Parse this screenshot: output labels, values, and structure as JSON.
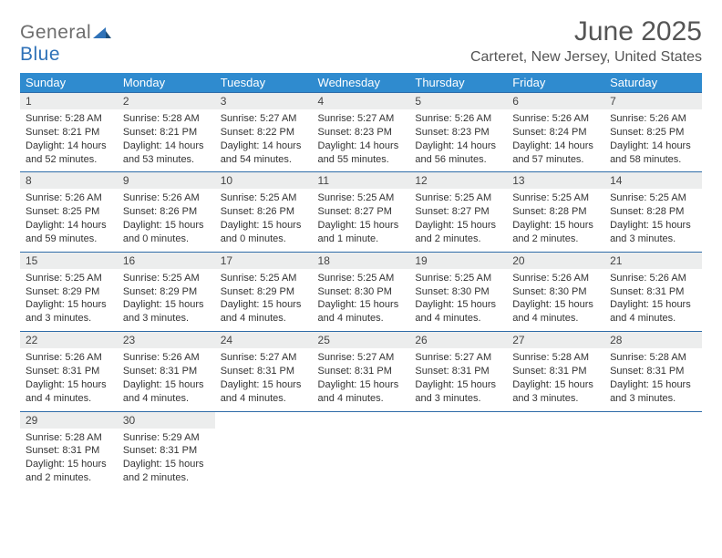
{
  "logo": {
    "textGray": "General",
    "textBlue": "Blue"
  },
  "header": {
    "title": "June 2025",
    "location": "Carteret, New Jersey, United States"
  },
  "colors": {
    "headerBg": "#2f8bcf",
    "dayBarBg": "#eceded",
    "dayBarBorder": "#2f6ca8",
    "logoBlue": "#2f72b8",
    "logoGray": "#6d6d6d",
    "text": "#333333"
  },
  "weekdays": [
    "Sunday",
    "Monday",
    "Tuesday",
    "Wednesday",
    "Thursday",
    "Friday",
    "Saturday"
  ],
  "weeks": [
    [
      {
        "num": "1",
        "sunrise": "Sunrise: 5:28 AM",
        "sunset": "Sunset: 8:21 PM",
        "day1": "Daylight: 14 hours",
        "day2": "and 52 minutes."
      },
      {
        "num": "2",
        "sunrise": "Sunrise: 5:28 AM",
        "sunset": "Sunset: 8:21 PM",
        "day1": "Daylight: 14 hours",
        "day2": "and 53 minutes."
      },
      {
        "num": "3",
        "sunrise": "Sunrise: 5:27 AM",
        "sunset": "Sunset: 8:22 PM",
        "day1": "Daylight: 14 hours",
        "day2": "and 54 minutes."
      },
      {
        "num": "4",
        "sunrise": "Sunrise: 5:27 AM",
        "sunset": "Sunset: 8:23 PM",
        "day1": "Daylight: 14 hours",
        "day2": "and 55 minutes."
      },
      {
        "num": "5",
        "sunrise": "Sunrise: 5:26 AM",
        "sunset": "Sunset: 8:23 PM",
        "day1": "Daylight: 14 hours",
        "day2": "and 56 minutes."
      },
      {
        "num": "6",
        "sunrise": "Sunrise: 5:26 AM",
        "sunset": "Sunset: 8:24 PM",
        "day1": "Daylight: 14 hours",
        "day2": "and 57 minutes."
      },
      {
        "num": "7",
        "sunrise": "Sunrise: 5:26 AM",
        "sunset": "Sunset: 8:25 PM",
        "day1": "Daylight: 14 hours",
        "day2": "and 58 minutes."
      }
    ],
    [
      {
        "num": "8",
        "sunrise": "Sunrise: 5:26 AM",
        "sunset": "Sunset: 8:25 PM",
        "day1": "Daylight: 14 hours",
        "day2": "and 59 minutes."
      },
      {
        "num": "9",
        "sunrise": "Sunrise: 5:26 AM",
        "sunset": "Sunset: 8:26 PM",
        "day1": "Daylight: 15 hours",
        "day2": "and 0 minutes."
      },
      {
        "num": "10",
        "sunrise": "Sunrise: 5:25 AM",
        "sunset": "Sunset: 8:26 PM",
        "day1": "Daylight: 15 hours",
        "day2": "and 0 minutes."
      },
      {
        "num": "11",
        "sunrise": "Sunrise: 5:25 AM",
        "sunset": "Sunset: 8:27 PM",
        "day1": "Daylight: 15 hours",
        "day2": "and 1 minute."
      },
      {
        "num": "12",
        "sunrise": "Sunrise: 5:25 AM",
        "sunset": "Sunset: 8:27 PM",
        "day1": "Daylight: 15 hours",
        "day2": "and 2 minutes."
      },
      {
        "num": "13",
        "sunrise": "Sunrise: 5:25 AM",
        "sunset": "Sunset: 8:28 PM",
        "day1": "Daylight: 15 hours",
        "day2": "and 2 minutes."
      },
      {
        "num": "14",
        "sunrise": "Sunrise: 5:25 AM",
        "sunset": "Sunset: 8:28 PM",
        "day1": "Daylight: 15 hours",
        "day2": "and 3 minutes."
      }
    ],
    [
      {
        "num": "15",
        "sunrise": "Sunrise: 5:25 AM",
        "sunset": "Sunset: 8:29 PM",
        "day1": "Daylight: 15 hours",
        "day2": "and 3 minutes."
      },
      {
        "num": "16",
        "sunrise": "Sunrise: 5:25 AM",
        "sunset": "Sunset: 8:29 PM",
        "day1": "Daylight: 15 hours",
        "day2": "and 3 minutes."
      },
      {
        "num": "17",
        "sunrise": "Sunrise: 5:25 AM",
        "sunset": "Sunset: 8:29 PM",
        "day1": "Daylight: 15 hours",
        "day2": "and 4 minutes."
      },
      {
        "num": "18",
        "sunrise": "Sunrise: 5:25 AM",
        "sunset": "Sunset: 8:30 PM",
        "day1": "Daylight: 15 hours",
        "day2": "and 4 minutes."
      },
      {
        "num": "19",
        "sunrise": "Sunrise: 5:25 AM",
        "sunset": "Sunset: 8:30 PM",
        "day1": "Daylight: 15 hours",
        "day2": "and 4 minutes."
      },
      {
        "num": "20",
        "sunrise": "Sunrise: 5:26 AM",
        "sunset": "Sunset: 8:30 PM",
        "day1": "Daylight: 15 hours",
        "day2": "and 4 minutes."
      },
      {
        "num": "21",
        "sunrise": "Sunrise: 5:26 AM",
        "sunset": "Sunset: 8:31 PM",
        "day1": "Daylight: 15 hours",
        "day2": "and 4 minutes."
      }
    ],
    [
      {
        "num": "22",
        "sunrise": "Sunrise: 5:26 AM",
        "sunset": "Sunset: 8:31 PM",
        "day1": "Daylight: 15 hours",
        "day2": "and 4 minutes."
      },
      {
        "num": "23",
        "sunrise": "Sunrise: 5:26 AM",
        "sunset": "Sunset: 8:31 PM",
        "day1": "Daylight: 15 hours",
        "day2": "and 4 minutes."
      },
      {
        "num": "24",
        "sunrise": "Sunrise: 5:27 AM",
        "sunset": "Sunset: 8:31 PM",
        "day1": "Daylight: 15 hours",
        "day2": "and 4 minutes."
      },
      {
        "num": "25",
        "sunrise": "Sunrise: 5:27 AM",
        "sunset": "Sunset: 8:31 PM",
        "day1": "Daylight: 15 hours",
        "day2": "and 4 minutes."
      },
      {
        "num": "26",
        "sunrise": "Sunrise: 5:27 AM",
        "sunset": "Sunset: 8:31 PM",
        "day1": "Daylight: 15 hours",
        "day2": "and 3 minutes."
      },
      {
        "num": "27",
        "sunrise": "Sunrise: 5:28 AM",
        "sunset": "Sunset: 8:31 PM",
        "day1": "Daylight: 15 hours",
        "day2": "and 3 minutes."
      },
      {
        "num": "28",
        "sunrise": "Sunrise: 5:28 AM",
        "sunset": "Sunset: 8:31 PM",
        "day1": "Daylight: 15 hours",
        "day2": "and 3 minutes."
      }
    ],
    [
      {
        "num": "29",
        "sunrise": "Sunrise: 5:28 AM",
        "sunset": "Sunset: 8:31 PM",
        "day1": "Daylight: 15 hours",
        "day2": "and 2 minutes."
      },
      {
        "num": "30",
        "sunrise": "Sunrise: 5:29 AM",
        "sunset": "Sunset: 8:31 PM",
        "day1": "Daylight: 15 hours",
        "day2": "and 2 minutes."
      },
      null,
      null,
      null,
      null,
      null
    ]
  ]
}
